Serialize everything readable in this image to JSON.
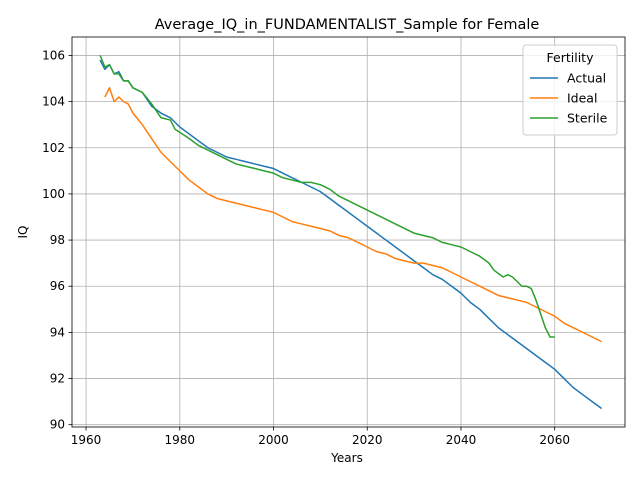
{
  "chart_data": {
    "type": "line",
    "title": "Average_IQ_in_FUNDAMENTALIST_Sample for Female",
    "xlabel": "Years",
    "ylabel": "IQ",
    "xlim": [
      1957,
      2075
    ],
    "ylim": [
      89.9,
      106.8
    ],
    "xticks": [
      1960,
      1980,
      2000,
      2020,
      2040,
      2060
    ],
    "yticks": [
      90,
      92,
      94,
      96,
      98,
      100,
      102,
      104,
      106
    ],
    "grid": true,
    "legend": {
      "title": "Fertility",
      "placement": "top-right"
    },
    "series": [
      {
        "name": "Actual",
        "color": "#1f77b4",
        "points": [
          [
            1963,
            105.8
          ],
          [
            1964,
            105.4
          ],
          [
            1965,
            105.6
          ],
          [
            1966,
            105.2
          ],
          [
            1967,
            105.3
          ],
          [
            1968,
            104.9
          ],
          [
            1969,
            104.9
          ],
          [
            1970,
            104.6
          ],
          [
            1972,
            104.4
          ],
          [
            1974,
            103.8
          ],
          [
            1976,
            103.5
          ],
          [
            1978,
            103.3
          ],
          [
            1980,
            102.9
          ],
          [
            1982,
            102.6
          ],
          [
            1984,
            102.3
          ],
          [
            1986,
            102.0
          ],
          [
            1988,
            101.8
          ],
          [
            1990,
            101.6
          ],
          [
            1992,
            101.5
          ],
          [
            1994,
            101.4
          ],
          [
            1996,
            101.3
          ],
          [
            1998,
            101.2
          ],
          [
            2000,
            101.1
          ],
          [
            2002,
            100.9
          ],
          [
            2004,
            100.7
          ],
          [
            2006,
            100.5
          ],
          [
            2008,
            100.3
          ],
          [
            2010,
            100.1
          ],
          [
            2012,
            99.8
          ],
          [
            2014,
            99.5
          ],
          [
            2016,
            99.2
          ],
          [
            2018,
            98.9
          ],
          [
            2020,
            98.6
          ],
          [
            2022,
            98.3
          ],
          [
            2024,
            98.0
          ],
          [
            2026,
            97.7
          ],
          [
            2028,
            97.4
          ],
          [
            2030,
            97.1
          ],
          [
            2032,
            96.8
          ],
          [
            2034,
            96.5
          ],
          [
            2036,
            96.3
          ],
          [
            2038,
            96.0
          ],
          [
            2040,
            95.7
          ],
          [
            2042,
            95.3
          ],
          [
            2044,
            95.0
          ],
          [
            2046,
            94.6
          ],
          [
            2048,
            94.2
          ],
          [
            2050,
            93.9
          ],
          [
            2052,
            93.6
          ],
          [
            2054,
            93.3
          ],
          [
            2056,
            93.0
          ],
          [
            2058,
            92.7
          ],
          [
            2060,
            92.4
          ],
          [
            2062,
            92.0
          ],
          [
            2064,
            91.6
          ],
          [
            2066,
            91.3
          ],
          [
            2068,
            91.0
          ],
          [
            2070,
            90.7
          ]
        ]
      },
      {
        "name": "Ideal",
        "color": "#ff7f0e",
        "points": [
          [
            1964,
            104.2
          ],
          [
            1965,
            104.6
          ],
          [
            1966,
            104.0
          ],
          [
            1967,
            104.2
          ],
          [
            1968,
            104.0
          ],
          [
            1969,
            103.9
          ],
          [
            1970,
            103.5
          ],
          [
            1972,
            103.0
          ],
          [
            1974,
            102.4
          ],
          [
            1976,
            101.8
          ],
          [
            1978,
            101.4
          ],
          [
            1980,
            101.0
          ],
          [
            1982,
            100.6
          ],
          [
            1984,
            100.3
          ],
          [
            1986,
            100.0
          ],
          [
            1988,
            99.8
          ],
          [
            1990,
            99.7
          ],
          [
            1992,
            99.6
          ],
          [
            1994,
            99.5
          ],
          [
            1996,
            99.4
          ],
          [
            1998,
            99.3
          ],
          [
            2000,
            99.2
          ],
          [
            2002,
            99.0
          ],
          [
            2004,
            98.8
          ],
          [
            2006,
            98.7
          ],
          [
            2008,
            98.6
          ],
          [
            2010,
            98.5
          ],
          [
            2012,
            98.4
          ],
          [
            2014,
            98.2
          ],
          [
            2016,
            98.1
          ],
          [
            2018,
            97.9
          ],
          [
            2020,
            97.7
          ],
          [
            2022,
            97.5
          ],
          [
            2024,
            97.4
          ],
          [
            2026,
            97.2
          ],
          [
            2028,
            97.1
          ],
          [
            2030,
            97.0
          ],
          [
            2032,
            97.0
          ],
          [
            2034,
            96.9
          ],
          [
            2036,
            96.8
          ],
          [
            2038,
            96.6
          ],
          [
            2040,
            96.4
          ],
          [
            2042,
            96.2
          ],
          [
            2044,
            96.0
          ],
          [
            2046,
            95.8
          ],
          [
            2048,
            95.6
          ],
          [
            2050,
            95.5
          ],
          [
            2052,
            95.4
          ],
          [
            2054,
            95.3
          ],
          [
            2056,
            95.1
          ],
          [
            2058,
            94.9
          ],
          [
            2060,
            94.7
          ],
          [
            2062,
            94.4
          ],
          [
            2064,
            94.2
          ],
          [
            2066,
            94.0
          ],
          [
            2068,
            93.8
          ],
          [
            2070,
            93.6
          ]
        ]
      },
      {
        "name": "Sterile",
        "color": "#2ca02c",
        "points": [
          [
            1963,
            106.0
          ],
          [
            1964,
            105.5
          ],
          [
            1965,
            105.6
          ],
          [
            1966,
            105.2
          ],
          [
            1967,
            105.2
          ],
          [
            1968,
            104.9
          ],
          [
            1969,
            104.9
          ],
          [
            1970,
            104.6
          ],
          [
            1972,
            104.4
          ],
          [
            1974,
            103.9
          ],
          [
            1976,
            103.3
          ],
          [
            1978,
            103.2
          ],
          [
            1979,
            102.8
          ],
          [
            1982,
            102.4
          ],
          [
            1984,
            102.1
          ],
          [
            1986,
            101.9
          ],
          [
            1988,
            101.7
          ],
          [
            1990,
            101.5
          ],
          [
            1992,
            101.3
          ],
          [
            1994,
            101.2
          ],
          [
            1996,
            101.1
          ],
          [
            1998,
            101.0
          ],
          [
            2000,
            100.9
          ],
          [
            2002,
            100.7
          ],
          [
            2004,
            100.6
          ],
          [
            2006,
            100.5
          ],
          [
            2008,
            100.5
          ],
          [
            2010,
            100.4
          ],
          [
            2012,
            100.2
          ],
          [
            2014,
            99.9
          ],
          [
            2016,
            99.7
          ],
          [
            2018,
            99.5
          ],
          [
            2020,
            99.3
          ],
          [
            2022,
            99.1
          ],
          [
            2024,
            98.9
          ],
          [
            2026,
            98.7
          ],
          [
            2028,
            98.5
          ],
          [
            2030,
            98.3
          ],
          [
            2032,
            98.2
          ],
          [
            2034,
            98.1
          ],
          [
            2036,
            97.9
          ],
          [
            2038,
            97.8
          ],
          [
            2040,
            97.7
          ],
          [
            2042,
            97.5
          ],
          [
            2044,
            97.3
          ],
          [
            2046,
            97.0
          ],
          [
            2047,
            96.7
          ],
          [
            2049,
            96.4
          ],
          [
            2050,
            96.5
          ],
          [
            2051,
            96.4
          ],
          [
            2053,
            96.0
          ],
          [
            2054,
            96.0
          ],
          [
            2055,
            95.9
          ],
          [
            2056,
            95.4
          ],
          [
            2057,
            94.8
          ],
          [
            2058,
            94.2
          ],
          [
            2059,
            93.8
          ],
          [
            2060,
            93.8
          ]
        ]
      }
    ]
  }
}
